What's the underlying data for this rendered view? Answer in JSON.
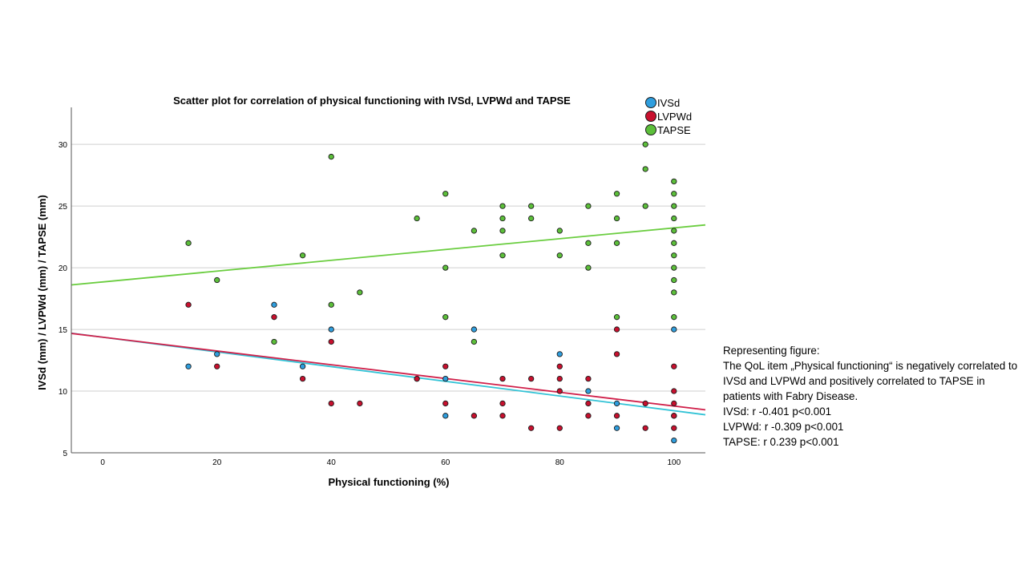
{
  "chart_data": {
    "type": "scatter",
    "title": "Scatter plot for correlation of physical functioning with IVSd, LVPWd and TAPSE",
    "xlabel": "Physical functioning (%)",
    "ylabel": "IVSd (mm) / LVPWd (mm) / TAPSE (mm)",
    "xlim": [
      -5.5,
      105.5
    ],
    "ylim": [
      5,
      33
    ],
    "xticks": [
      0,
      20,
      40,
      60,
      80,
      100
    ],
    "yticks": [
      5,
      10,
      15,
      20,
      25,
      30
    ],
    "grid": "horizontal",
    "legend_position": "top-right",
    "series": [
      {
        "name": "IVSd",
        "color": "#2f9ede",
        "points": [
          [
            15,
            12
          ],
          [
            20,
            13
          ],
          [
            30,
            17
          ],
          [
            35,
            12
          ],
          [
            40,
            15
          ],
          [
            55,
            11
          ],
          [
            60,
            11
          ],
          [
            60,
            8
          ],
          [
            65,
            15
          ],
          [
            80,
            13
          ],
          [
            85,
            10
          ],
          [
            90,
            7
          ],
          [
            90,
            9
          ],
          [
            100,
            15
          ],
          [
            100,
            6
          ],
          [
            100,
            8
          ]
        ],
        "fit": {
          "slope": -0.0596,
          "intercept": 14.37,
          "color": "#33c3d6"
        }
      },
      {
        "name": "LVPWd",
        "color": "#c8102e",
        "points": [
          [
            15,
            17
          ],
          [
            20,
            12
          ],
          [
            30,
            16
          ],
          [
            35,
            11
          ],
          [
            40,
            14
          ],
          [
            40,
            9
          ],
          [
            45,
            9
          ],
          [
            55,
            11
          ],
          [
            60,
            12
          ],
          [
            60,
            9
          ],
          [
            65,
            8
          ],
          [
            70,
            11
          ],
          [
            70,
            9
          ],
          [
            70,
            8
          ],
          [
            75,
            11
          ],
          [
            75,
            7
          ],
          [
            80,
            12
          ],
          [
            80,
            11
          ],
          [
            80,
            10
          ],
          [
            80,
            7
          ],
          [
            85,
            11
          ],
          [
            85,
            9
          ],
          [
            85,
            8
          ],
          [
            90,
            15
          ],
          [
            90,
            13
          ],
          [
            90,
            8
          ],
          [
            95,
            9
          ],
          [
            95,
            7
          ],
          [
            100,
            12
          ],
          [
            100,
            10
          ],
          [
            100,
            9
          ],
          [
            100,
            8
          ],
          [
            100,
            7
          ]
        ],
        "fit": {
          "slope": -0.0558,
          "intercept": 14.37,
          "color": "#d0204a"
        }
      },
      {
        "name": "TAPSE",
        "color": "#5cbf3a",
        "points": [
          [
            15,
            22
          ],
          [
            20,
            19
          ],
          [
            30,
            14
          ],
          [
            35,
            21
          ],
          [
            40,
            29
          ],
          [
            40,
            17
          ],
          [
            45,
            18
          ],
          [
            55,
            24
          ],
          [
            60,
            26
          ],
          [
            60,
            20
          ],
          [
            60,
            16
          ],
          [
            65,
            23
          ],
          [
            65,
            14
          ],
          [
            70,
            25
          ],
          [
            70,
            24
          ],
          [
            70,
            23
          ],
          [
            70,
            21
          ],
          [
            75,
            25
          ],
          [
            75,
            24
          ],
          [
            80,
            23
          ],
          [
            80,
            21
          ],
          [
            85,
            25
          ],
          [
            85,
            22
          ],
          [
            85,
            20
          ],
          [
            90,
            26
          ],
          [
            90,
            24
          ],
          [
            90,
            22
          ],
          [
            90,
            16
          ],
          [
            95,
            30
          ],
          [
            95,
            28
          ],
          [
            95,
            25
          ],
          [
            100,
            27
          ],
          [
            100,
            26
          ],
          [
            100,
            25
          ],
          [
            100,
            24
          ],
          [
            100,
            23
          ],
          [
            100,
            22
          ],
          [
            100,
            21
          ],
          [
            100,
            20
          ],
          [
            100,
            19
          ],
          [
            100,
            18
          ],
          [
            100,
            16
          ]
        ],
        "fit": {
          "slope": 0.0438,
          "intercept": 18.85,
          "color": "#6acd3f"
        }
      }
    ]
  },
  "side_note": {
    "heading": "Representing figure:",
    "lines": [
      "The QoL item „Physical functioning“ is negatively correlated to IVSd and LVPWd and positively correlated to TAPSE in patients with Fabry Disease.",
      "IVSd: r -0.401 p<0.001",
      "LVPWd: r -0.309 p<0.001",
      "TAPSE: r 0.239 p<0.001"
    ]
  }
}
